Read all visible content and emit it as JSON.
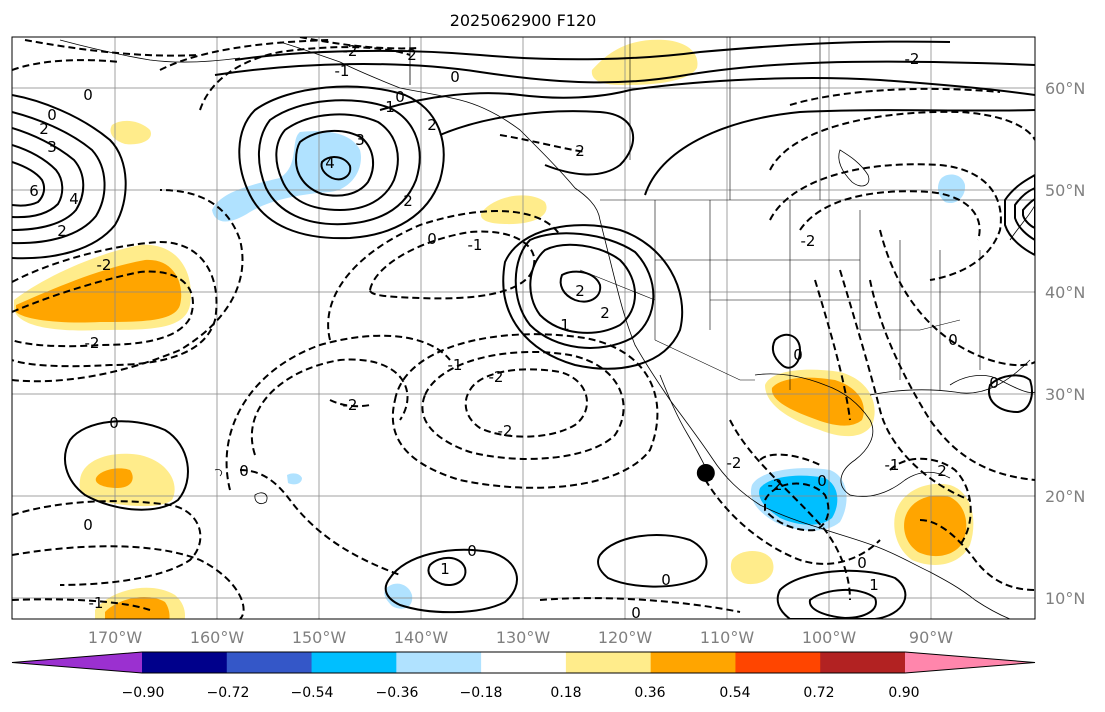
{
  "chart_data": {
    "type": "contour-map",
    "title": "2025062900 F120",
    "x_axis": {
      "ticks": [
        "170°W",
        "160°W",
        "150°W",
        "140°W",
        "130°W",
        "120°W",
        "110°W",
        "100°W",
        "90°W"
      ],
      "range_deg": [
        180,
        79
      ]
    },
    "y_axis": {
      "ticks": [
        "10°N",
        "20°N",
        "30°N",
        "40°N",
        "50°N",
        "60°N"
      ],
      "range_deg": [
        8,
        65
      ]
    },
    "colorbar": {
      "ticks": [
        "−0.90",
        "−0.72",
        "−0.54",
        "−0.36",
        "−0.18",
        "0.18",
        "0.36",
        "0.54",
        "0.72",
        "0.90"
      ],
      "colors": [
        "#9b30d0",
        "#00008b",
        "#3457c8",
        "#00bfff",
        "#b0e2ff",
        "#ffffff",
        "#ffec8b",
        "#ffa500",
        "#ff4500",
        "#b22222",
        "#ff86ac"
      ],
      "extend": "both"
    },
    "grid": true,
    "marker": {
      "lon": -111.5,
      "lat": 22.3,
      "color": "#000000"
    },
    "contour_labels": [
      "-2",
      "2",
      "-1",
      "1",
      "0",
      "3",
      "4",
      "6"
    ]
  }
}
